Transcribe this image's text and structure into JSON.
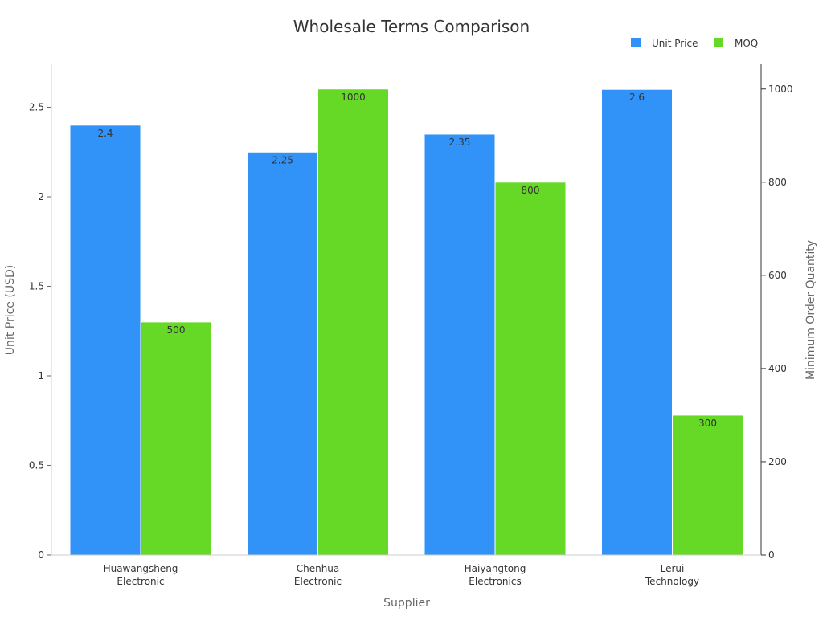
{
  "chart_data": {
    "type": "bar",
    "title": "Wholesale Terms Comparison",
    "xlabel": "Supplier",
    "ylabel_left": "Unit Price (USD)",
    "ylabel_right": "Minimum Order Quantity",
    "categories": [
      [
        "Huawangsheng",
        "Electronic"
      ],
      [
        "Chenhua",
        "Electronic"
      ],
      [
        "Haiyangtong",
        "Electronics"
      ],
      [
        "Lerui",
        "Technology"
      ]
    ],
    "series": [
      {
        "name": "Unit Price",
        "axis": "left",
        "color": "#3192f8",
        "values": [
          2.4,
          2.25,
          2.35,
          2.6
        ],
        "labels": [
          "2.4",
          "2.25",
          "2.35",
          "2.6"
        ]
      },
      {
        "name": "MOQ",
        "axis": "right",
        "color": "#66d926",
        "values": [
          500,
          1000,
          800,
          300
        ],
        "labels": [
          "500",
          "1000",
          "800",
          "300"
        ]
      }
    ],
    "ylim_left": [
      0,
      2.74
    ],
    "ylim_right": [
      0,
      1053
    ],
    "yticks_left": [
      0,
      0.5,
      1,
      1.5,
      2,
      2.5
    ],
    "yticks_left_labels": [
      "0",
      "0.5",
      "1",
      "1.5",
      "2",
      "2.5"
    ],
    "yticks_right": [
      0,
      200,
      400,
      600,
      800,
      1000
    ],
    "yticks_right_labels": [
      "0",
      "200",
      "400",
      "600",
      "800",
      "1000"
    ],
    "legend_position": "top-right",
    "grid": false
  }
}
